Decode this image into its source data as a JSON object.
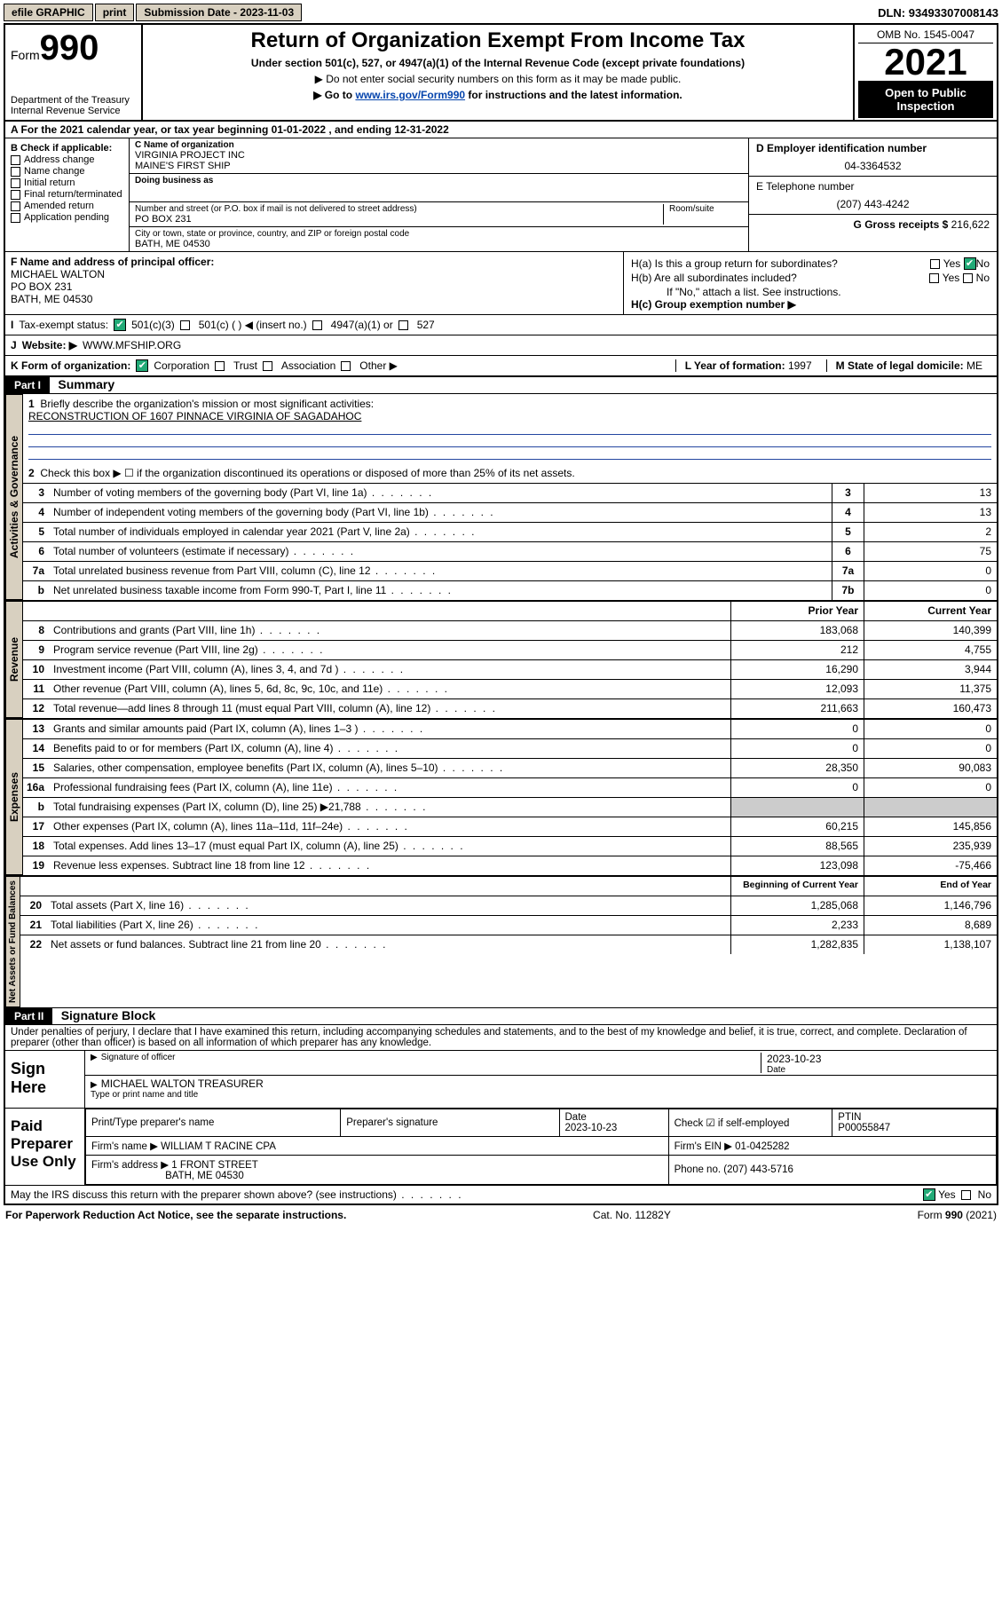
{
  "topbar": {
    "efile": "efile GRAPHIC",
    "print": "print",
    "sub_label": "Submission Date - ",
    "sub_date": "2023-11-03",
    "dln_label": "DLN: ",
    "dln": "93493307008143"
  },
  "header": {
    "form_prefix": "Form",
    "form_num": "990",
    "dept": "Department of the Treasury\nInternal Revenue Service",
    "title": "Return of Organization Exempt From Income Tax",
    "sub": "Under section 501(c), 527, or 4947(a)(1) of the Internal Revenue Code (except private foundations)",
    "note1": "▶ Do not enter social security numbers on this form as it may be made public.",
    "note2_pre": "▶ Go to ",
    "note2_link": "www.irs.gov/Form990",
    "note2_post": " for instructions and the latest information.",
    "omb": "OMB No. 1545-0047",
    "year": "2021",
    "inspect1": "Open to Public",
    "inspect2": "Inspection"
  },
  "rowA": {
    "text": "A For the 2021 calendar year, or tax year beginning 01-01-2022   , and ending 12-31-2022"
  },
  "colB": {
    "label": "B Check if applicable:",
    "items": [
      "Address change",
      "Name change",
      "Initial return",
      "Final return/terminated",
      "Amended return",
      "Application pending"
    ]
  },
  "colC": {
    "name_lab": "C Name of organization",
    "name1": "VIRGINIA PROJECT INC",
    "name2": "MAINE'S FIRST SHIP",
    "dba_lab": "Doing business as",
    "addr_lab": "Number and street (or P.O. box if mail is not delivered to street address)",
    "room_lab": "Room/suite",
    "addr": "PO BOX 231",
    "city_lab": "City or town, state or province, country, and ZIP or foreign postal code",
    "city": "BATH, ME  04530"
  },
  "colDE": {
    "d_lab": "D Employer identification number",
    "ein": "04-3364532",
    "e_lab": "E Telephone number",
    "phone": "(207) 443-4242",
    "g_lab": "G Gross receipts $ ",
    "gross": "216,622"
  },
  "rowF": {
    "lab": "F Name and address of principal officer:",
    "l1": "MICHAEL WALTON",
    "l2": "PO BOX 231",
    "l3": "BATH, ME  04530"
  },
  "rowH": {
    "ha": "H(a)  Is this a group return for subordinates?",
    "ha_yes": "Yes",
    "ha_no": "No",
    "hb": "H(b)  Are all subordinates included?",
    "hb_yes": "Yes",
    "hb_no": "No",
    "hb_note": "If \"No,\" attach a list. See instructions.",
    "hc": "H(c)  Group exemption number ▶"
  },
  "rowI": {
    "lab": "I",
    "txt": "Tax-exempt status:",
    "o1": "501(c)(3)",
    "o2": "501(c) (  ) ◀ (insert no.)",
    "o3": "4947(a)(1) or",
    "o4": "527"
  },
  "rowJ": {
    "lab": "J",
    "txt": "Website: ▶",
    "val": "WWW.MFSHIP.ORG"
  },
  "rowK": {
    "lab": "K Form of organization:",
    "o1": "Corporation",
    "o2": "Trust",
    "o3": "Association",
    "o4": "Other ▶",
    "l_lab": "L Year of formation: ",
    "l_val": "1997",
    "m_lab": "M State of legal domicile: ",
    "m_val": "ME"
  },
  "part1": {
    "hdr": "Part I",
    "title": "Summary"
  },
  "summary": {
    "q1_lab": "1",
    "q1": "Briefly describe the organization's mission or most significant activities:",
    "q1_val": "RECONSTRUCTION OF 1607 PINNACE VIRGINIA OF SAGADAHOC",
    "q2_lab": "2",
    "q2": "Check this box ▶ ☐  if the organization discontinued its operations or disposed of more than 25% of its net assets.",
    "lines_gov": [
      {
        "n": "3",
        "d": "Number of voting members of the governing body (Part VI, line 1a)",
        "box": "3",
        "v": "13"
      },
      {
        "n": "4",
        "d": "Number of independent voting members of the governing body (Part VI, line 1b)",
        "box": "4",
        "v": "13"
      },
      {
        "n": "5",
        "d": "Total number of individuals employed in calendar year 2021 (Part V, line 2a)",
        "box": "5",
        "v": "2"
      },
      {
        "n": "6",
        "d": "Total number of volunteers (estimate if necessary)",
        "box": "6",
        "v": "75"
      },
      {
        "n": "7a",
        "d": "Total unrelated business revenue from Part VIII, column (C), line 12",
        "box": "7a",
        "v": "0"
      },
      {
        "n": "b",
        "d": "Net unrelated business taxable income from Form 990-T, Part I, line 11",
        "box": "7b",
        "v": "0"
      }
    ],
    "col_prior": "Prior Year",
    "col_curr": "Current Year",
    "lines_rev": [
      {
        "n": "8",
        "d": "Contributions and grants (Part VIII, line 1h)",
        "p": "183,068",
        "c": "140,399"
      },
      {
        "n": "9",
        "d": "Program service revenue (Part VIII, line 2g)",
        "p": "212",
        "c": "4,755"
      },
      {
        "n": "10",
        "d": "Investment income (Part VIII, column (A), lines 3, 4, and 7d )",
        "p": "16,290",
        "c": "3,944"
      },
      {
        "n": "11",
        "d": "Other revenue (Part VIII, column (A), lines 5, 6d, 8c, 9c, 10c, and 11e)",
        "p": "12,093",
        "c": "11,375"
      },
      {
        "n": "12",
        "d": "Total revenue—add lines 8 through 11 (must equal Part VIII, column (A), line 12)",
        "p": "211,663",
        "c": "160,473"
      }
    ],
    "lines_exp": [
      {
        "n": "13",
        "d": "Grants and similar amounts paid (Part IX, column (A), lines 1–3 )",
        "p": "0",
        "c": "0"
      },
      {
        "n": "14",
        "d": "Benefits paid to or for members (Part IX, column (A), line 4)",
        "p": "0",
        "c": "0"
      },
      {
        "n": "15",
        "d": "Salaries, other compensation, employee benefits (Part IX, column (A), lines 5–10)",
        "p": "28,350",
        "c": "90,083"
      },
      {
        "n": "16a",
        "d": "Professional fundraising fees (Part IX, column (A), line 11e)",
        "p": "0",
        "c": "0"
      },
      {
        "n": "b",
        "d": "Total fundraising expenses (Part IX, column (D), line 25) ▶21,788",
        "p": "",
        "c": ""
      },
      {
        "n": "17",
        "d": "Other expenses (Part IX, column (A), lines 11a–11d, 11f–24e)",
        "p": "60,215",
        "c": "145,856"
      },
      {
        "n": "18",
        "d": "Total expenses. Add lines 13–17 (must equal Part IX, column (A), line 25)",
        "p": "88,565",
        "c": "235,939"
      },
      {
        "n": "19",
        "d": "Revenue less expenses. Subtract line 18 from line 12",
        "p": "123,098",
        "c": "-75,466"
      }
    ],
    "col_beg": "Beginning of Current Year",
    "col_end": "End of Year",
    "lines_na": [
      {
        "n": "20",
        "d": "Total assets (Part X, line 16)",
        "p": "1,285,068",
        "c": "1,146,796"
      },
      {
        "n": "21",
        "d": "Total liabilities (Part X, line 26)",
        "p": "2,233",
        "c": "8,689"
      },
      {
        "n": "22",
        "d": "Net assets or fund balances. Subtract line 21 from line 20",
        "p": "1,282,835",
        "c": "1,138,107"
      }
    ],
    "side_gov": "Activities & Governance",
    "side_rev": "Revenue",
    "side_exp": "Expenses",
    "side_na": "Net Assets or\nFund Balances"
  },
  "part2": {
    "hdr": "Part II",
    "title": "Signature Block",
    "penalty": "Under penalties of perjury, I declare that I have examined this return, including accompanying schedules and statements, and to the best of my knowledge and belief, it is true, correct, and complete. Declaration of preparer (other than officer) is based on all information of which preparer has any knowledge."
  },
  "sign": {
    "here": "Sign Here",
    "sig_lab": "Signature of officer",
    "date_lab": "Date",
    "date": "2023-10-23",
    "name": "MICHAEL WALTON  TREASURER",
    "name_lab": "Type or print name and title"
  },
  "prep": {
    "here": "Paid Preparer Use Only",
    "h1": "Print/Type preparer's name",
    "h2": "Preparer's signature",
    "h3": "Date",
    "h3v": "2023-10-23",
    "h4": "Check ☑ if self-employed",
    "h5": "PTIN",
    "h5v": "P00055847",
    "firm_lab": "Firm's name    ▶ ",
    "firm": "WILLIAM T RACINE CPA",
    "ein_lab": "Firm's EIN ▶ ",
    "ein": "01-0425282",
    "addr_lab": "Firm's address ▶ ",
    "addr1": "1 FRONT STREET",
    "addr2": "BATH, ME  04530",
    "ph_lab": "Phone no. ",
    "ph": "(207) 443-5716"
  },
  "footer": {
    "q": "May the IRS discuss this return with the preparer shown above? (see instructions)",
    "yes": "Yes",
    "no": "No",
    "pra": "For Paperwork Reduction Act Notice, see the separate instructions.",
    "cat": "Cat. No. 11282Y",
    "form": "Form 990 (2021)"
  }
}
